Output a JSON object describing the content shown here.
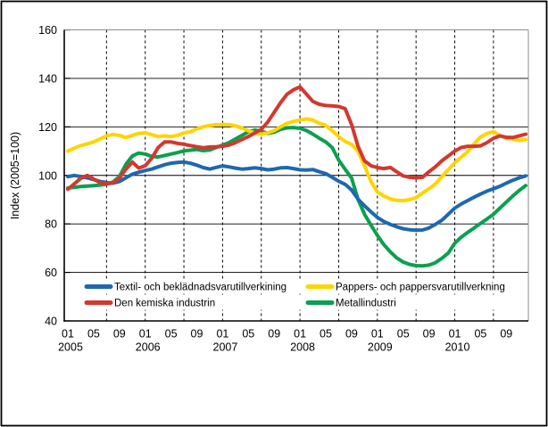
{
  "chart_data": {
    "type": "line",
    "title": "",
    "ylabel": "Index (2005=100)",
    "ylim": [
      40,
      160
    ],
    "ytick_step": 20,
    "yticks": [
      40,
      60,
      80,
      100,
      120,
      140,
      160
    ],
    "x_start": "2005-01",
    "x_end": "2010-12",
    "months_per_point": 1,
    "x_tick_interval_months": 4,
    "x_tick_labels_cycle": [
      "01",
      "05",
      "09"
    ],
    "x_year_labels": [
      "2005",
      "2006",
      "2007",
      "2008",
      "2009",
      "2010"
    ],
    "grid": {
      "horizontal": "solid",
      "vertical": "dashed every 6 months (Jan & Jul)"
    },
    "legend_position": "inside-bottom, two columns",
    "series": [
      {
        "name": "Textil- och beklädnadsvarutillverkining",
        "color": "#1E68B2",
        "values": [
          99.5,
          100.0,
          99.5,
          99.0,
          98.3,
          97.5,
          97.0,
          96.8,
          97.5,
          99.0,
          100.5,
          101.3,
          102.0,
          102.6,
          103.5,
          104.4,
          105.0,
          105.3,
          105.5,
          105.0,
          104.2,
          103.2,
          102.6,
          103.3,
          103.9,
          103.5,
          103.0,
          102.6,
          102.8,
          103.1,
          102.8,
          102.3,
          102.6,
          103.1,
          103.2,
          102.8,
          102.3,
          102.2,
          102.4,
          101.5,
          100.7,
          99.2,
          97.6,
          96.3,
          94.0,
          90.2,
          87.5,
          85.0,
          82.7,
          81.0,
          79.8,
          78.8,
          78.0,
          77.6,
          77.4,
          77.5,
          78.3,
          79.8,
          81.5,
          84.0,
          86.5,
          88.2,
          89.6,
          91.0,
          92.3,
          93.5,
          94.5,
          95.5,
          96.8,
          98.0,
          99.0,
          99.8
        ]
      },
      {
        "name": "Den kemiska industrin",
        "color": "#D4372F",
        "values": [
          94.3,
          96.5,
          98.8,
          100.0,
          98.5,
          97.0,
          96.4,
          97.0,
          98.8,
          102.5,
          105.5,
          103.0,
          104.0,
          107.0,
          111.5,
          113.8,
          113.8,
          113.2,
          112.8,
          112.3,
          111.8,
          111.4,
          111.7,
          111.8,
          112.0,
          112.5,
          113.5,
          114.8,
          116.0,
          117.5,
          119.0,
          122.0,
          126.0,
          130.0,
          133.5,
          135.3,
          136.5,
          133.5,
          130.5,
          129.3,
          128.8,
          128.7,
          128.4,
          127.5,
          121.0,
          112.0,
          106.0,
          104.0,
          103.2,
          102.8,
          103.3,
          101.5,
          99.8,
          99.2,
          99.0,
          99.2,
          101.5,
          103.5,
          106.0,
          108.0,
          110.0,
          111.5,
          112.0,
          112.0,
          112.2,
          113.5,
          115.3,
          116.3,
          115.7,
          115.6,
          116.3,
          117.0
        ]
      },
      {
        "name": "Pappers- och pappersvarutillverkning",
        "color": "#FFD400",
        "values": [
          110.0,
          111.2,
          112.3,
          113.0,
          113.8,
          115.0,
          116.3,
          116.9,
          116.5,
          115.6,
          116.5,
          117.3,
          117.6,
          116.8,
          116.0,
          116.3,
          116.0,
          116.5,
          117.5,
          118.0,
          119.2,
          120.0,
          120.6,
          120.9,
          121.0,
          120.9,
          120.4,
          119.5,
          118.4,
          117.5,
          117.0,
          117.5,
          118.5,
          120.0,
          121.5,
          122.3,
          122.8,
          123.3,
          122.8,
          121.5,
          120.6,
          118.5,
          116.0,
          114.0,
          112.8,
          110.0,
          104.0,
          97.5,
          93.2,
          91.5,
          90.3,
          89.7,
          89.6,
          90.0,
          90.8,
          92.7,
          94.5,
          96.5,
          99.5,
          102.3,
          105.1,
          107.5,
          109.8,
          113.0,
          115.8,
          117.3,
          118.0,
          116.5,
          115.3,
          115.0,
          114.4,
          114.8
        ]
      },
      {
        "name": "Metallindustri",
        "color": "#0AA04F",
        "values": [
          94.8,
          95.1,
          95.4,
          95.6,
          95.8,
          96.0,
          96.4,
          97.3,
          99.5,
          104.5,
          108.0,
          109.2,
          108.8,
          107.8,
          107.6,
          108.2,
          108.8,
          109.4,
          110.1,
          110.4,
          110.7,
          110.2,
          110.5,
          111.5,
          112.5,
          113.5,
          115.0,
          116.5,
          118.0,
          118.7,
          118.2,
          117.3,
          117.8,
          119.0,
          119.6,
          119.7,
          119.4,
          118.5,
          117.0,
          115.3,
          113.8,
          111.5,
          106.3,
          102.5,
          98.9,
          90.2,
          84.0,
          79.5,
          75.3,
          71.5,
          68.5,
          66.0,
          64.3,
          63.3,
          62.8,
          62.7,
          63.0,
          64.0,
          65.8,
          68.0,
          72.0,
          74.5,
          76.5,
          78.3,
          80.2,
          82.0,
          84.0,
          86.5,
          89.0,
          91.5,
          93.8,
          95.8
        ]
      }
    ],
    "colors": {
      "textil": "#1E68B2",
      "kemiska": "#D4372F",
      "pappers": "#FFD400",
      "metall": "#0AA04F",
      "border_gray": "#8C8C8C",
      "axis_black": "#000000"
    }
  }
}
